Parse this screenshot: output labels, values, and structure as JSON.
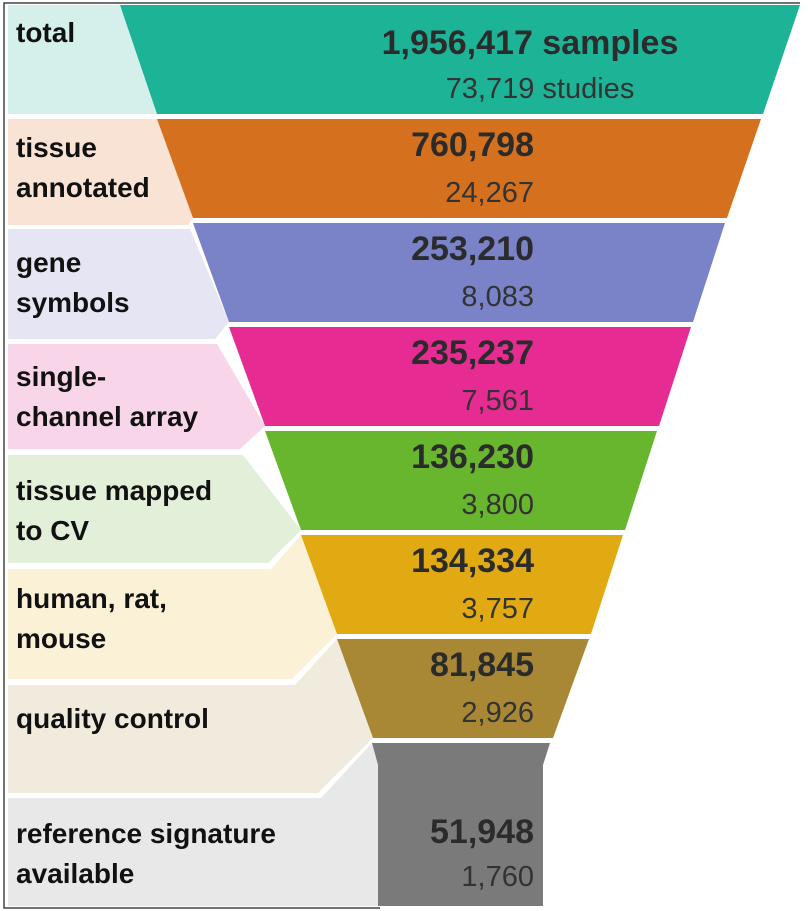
{
  "stages": [
    {
      "label_lines": [
        "total"
      ],
      "samples": "1,956,417",
      "samples_unit": "samples",
      "studies": "73,719",
      "studies_unit": "studies",
      "color": "#1db397",
      "label_bg": "#d5efeb"
    },
    {
      "label_lines": [
        "tissue",
        "annotated"
      ],
      "samples": "760,798",
      "studies": "24,267",
      "color": "#d5711e",
      "label_bg": "#f8e3d4"
    },
    {
      "label_lines": [
        "gene",
        "symbols"
      ],
      "samples": "253,210",
      "studies": "8,083",
      "color": "#7a82c8",
      "label_bg": "#e5e5f3"
    },
    {
      "label_lines": [
        "single-",
        "channel array"
      ],
      "samples": "235,237",
      "studies": "7,561",
      "color": "#e62c93",
      "label_bg": "#f9d5ea"
    },
    {
      "label_lines": [
        "tissue mapped",
        "to CV"
      ],
      "samples": "136,230",
      "studies": "3,800",
      "color": "#68b52e",
      "label_bg": "#e2f0d9"
    },
    {
      "label_lines": [
        "human, rat,",
        "mouse"
      ],
      "samples": "134,334",
      "studies": "3,757",
      "color": "#e2aa12",
      "label_bg": "#fbf1d6"
    },
    {
      "label_lines": [
        "quality control"
      ],
      "samples": "81,845",
      "studies": "2,926",
      "color": "#a88834",
      "label_bg": "#f0ebdd"
    },
    {
      "label_lines": [
        "reference signature",
        "available"
      ],
      "samples": "51,948",
      "studies": "1,760",
      "color": "#7a7a7a",
      "label_bg": "#e8e8e8"
    }
  ]
}
